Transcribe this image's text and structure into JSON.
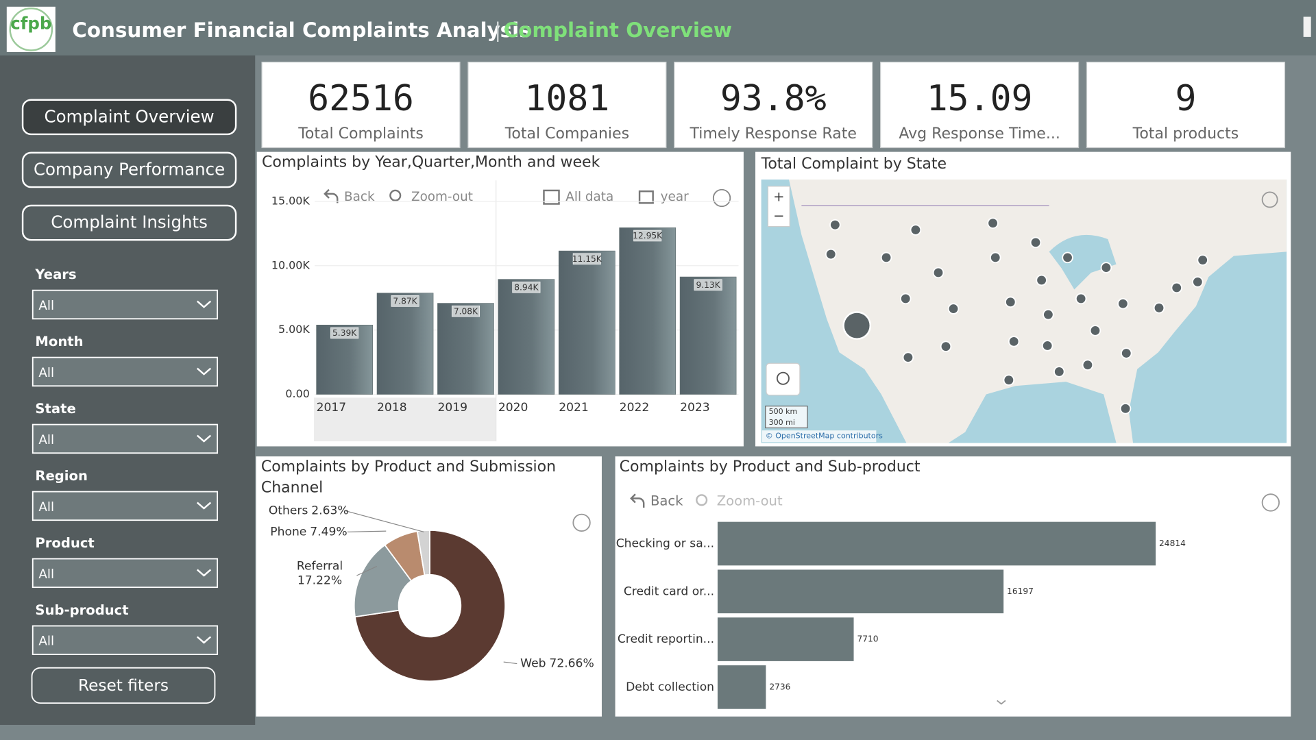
{
  "header": {
    "logo": "cfpb",
    "title": "Consumer Financial Complaints Analysis",
    "separator": "|",
    "page": "Complaint Overview"
  },
  "nav": [
    "Complaint Overview",
    "Company Performance",
    "Complaint Insights"
  ],
  "filters": [
    {
      "label": "Years",
      "value": "All"
    },
    {
      "label": "Month",
      "value": "All"
    },
    {
      "label": "State",
      "value": "All"
    },
    {
      "label": "Region",
      "value": "All"
    },
    {
      "label": "Product",
      "value": "All"
    },
    {
      "label": "Sub-product",
      "value": "All"
    }
  ],
  "reset": "Reset fiters",
  "kpis": [
    {
      "value": 62516,
      "label": "Total Complaints"
    },
    {
      "value": 1081,
      "label": "Total Companies"
    },
    {
      "value": "93.8%",
      "label": "Timely Response Rate"
    },
    {
      "value": 15.09,
      "label": "Avg Response Time..."
    },
    {
      "value": 9,
      "label": "Total products"
    }
  ],
  "map": {
    "title": "Total Complaint by State",
    "zoom_in": "+",
    "zoom_out": "−",
    "scale_km": "500 km",
    "scale_mi": "300 mi",
    "attribution": "© OpenStreetMap contributors"
  },
  "chart_data": [
    {
      "type": "bar",
      "title": "Complaints by Year,Quarter,Month and week",
      "toolbar": [
        "Back",
        "Zoom-out",
        "All data",
        "year"
      ],
      "categories": [
        "2017",
        "2018",
        "2019",
        "2020",
        "2021",
        "2022",
        "2023"
      ],
      "values": [
        5390,
        7870,
        7080,
        8940,
        11150,
        12950,
        9130
      ],
      "value_labels": [
        "5.39K",
        "7.87K",
        "7.08K",
        "8.94K",
        "11.15K",
        "12.95K",
        "9.13K"
      ],
      "color": "#5d6b6d",
      "ylim": [
        0,
        15000
      ],
      "yticks": [
        {
          "value": 0,
          "label": "0.00"
        },
        {
          "value": 5000,
          "label": "5.00K"
        },
        {
          "value": 10000,
          "label": "10.00K"
        },
        {
          "value": 15000,
          "label": "15.00K"
        }
      ],
      "grid": true
    },
    {
      "type": "donut",
      "title": "Complaints by Product and Submission Channel",
      "categories": [
        "Web",
        "Referral",
        "Phone",
        "Others"
      ],
      "values": [
        72.66,
        17.22,
        7.49,
        2.63
      ],
      "value_labels": [
        "72.66%",
        "17.22%",
        "7.49%",
        "2.63%"
      ],
      "colors": [
        "#5b3a31",
        "#8c9a9d",
        "#b98b6e",
        "#d3d3d3"
      ]
    },
    {
      "type": "hbar",
      "title": "Complaints by Product and Sub-product",
      "toolbar": [
        "Back",
        "Zoom-out"
      ],
      "categories": [
        "Checking or sa...",
        "Credit card or...",
        "Credit reportin...",
        "Debt collection"
      ],
      "values": [
        24814,
        16197,
        7710,
        2736
      ],
      "color": "#6b797b"
    }
  ]
}
